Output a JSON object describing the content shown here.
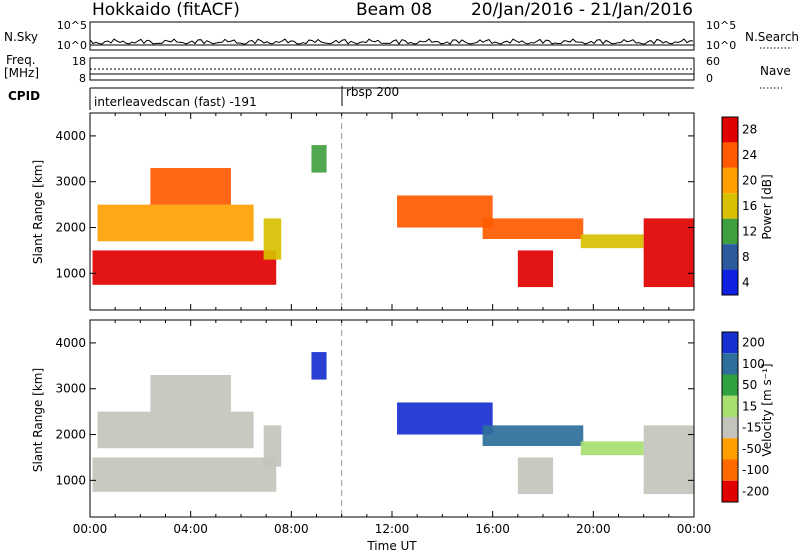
{
  "header": {
    "station": "Hokkaido (fitACF)",
    "beam": "Beam 08",
    "date_range": "20/Jan/2016 - 21/Jan/2016"
  },
  "status_panel": {
    "nsky_label": "N.Sky",
    "nsky_ticks": [
      "10^5",
      "10^0"
    ],
    "nsearch_label": "N.Search",
    "nsearch_ticks": [
      "10^5",
      "10^0"
    ],
    "freq_label": "Freq.",
    "freq_unit": "[MHz]",
    "freq_ticks": [
      "18",
      "8"
    ],
    "nave_label": "Nave",
    "nave_ticks": [
      "60",
      "0"
    ],
    "cpid_label": "CPID",
    "cpid_modes": [
      {
        "name": "interleavedscan (fast) -191",
        "start_hour": 0
      },
      {
        "name": "rbsp 200",
        "start_hour": 10
      }
    ]
  },
  "chart_data": [
    {
      "type": "heatmap",
      "parameter": "power",
      "ylabel": "Slant Range [km]",
      "xlim": [
        0,
        24
      ],
      "ylim": [
        200,
        4500
      ],
      "yticks": [
        1000,
        2000,
        3000,
        4000
      ],
      "colorbar": {
        "label": "Power [dB]",
        "ticks": [
          "28",
          "24",
          "20",
          "16",
          "12",
          "8",
          "4"
        ],
        "colors": [
          "#e00000",
          "#ff5a00",
          "#ffa000",
          "#d8c000",
          "#40a040",
          "#2c5a9c",
          "#1020e0"
        ]
      },
      "regions": [
        {
          "t0": 0.1,
          "t1": 7.4,
          "r0": 750,
          "r1": 1500,
          "value": 28
        },
        {
          "t0": 0.3,
          "t1": 6.5,
          "r0": 1700,
          "r1": 2500,
          "value": 20
        },
        {
          "t0": 2.4,
          "t1": 5.6,
          "r0": 2500,
          "r1": 3300,
          "value": 22
        },
        {
          "t0": 6.9,
          "t1": 7.6,
          "r0": 1300,
          "r1": 2200,
          "value": 14
        },
        {
          "t0": 8.8,
          "t1": 9.4,
          "r0": 3200,
          "r1": 3800,
          "value": 10
        },
        {
          "t0": 12.2,
          "t1": 16.0,
          "r0": 2000,
          "r1": 2700,
          "value": 22
        },
        {
          "t0": 15.6,
          "t1": 19.6,
          "r0": 1750,
          "r1": 2200,
          "value": 24
        },
        {
          "t0": 17.0,
          "t1": 18.4,
          "r0": 700,
          "r1": 1500,
          "value": 28
        },
        {
          "t0": 19.5,
          "t1": 22.0,
          "r0": 1550,
          "r1": 1850,
          "value": 16
        },
        {
          "t0": 22.0,
          "t1": 24.0,
          "r0": 700,
          "r1": 2200,
          "value": 28
        }
      ]
    },
    {
      "type": "heatmap",
      "parameter": "velocity",
      "xlabel": "Time UT",
      "ylabel": "Slant Range [km]",
      "xlim": [
        0,
        24
      ],
      "ylim": [
        200,
        4500
      ],
      "xticks": [
        "00:00",
        "04:00",
        "08:00",
        "12:00",
        "16:00",
        "20:00",
        "00:00"
      ],
      "yticks": [
        1000,
        2000,
        3000,
        4000
      ],
      "colorbar": {
        "label": "Velocity [m s⁻¹]",
        "ticks": [
          "200",
          "100",
          "50",
          "15",
          "-15",
          "-50",
          "-100",
          "-200"
        ],
        "colors": [
          "#1830d0",
          "#2e6e9a",
          "#30a040",
          "#a8e070",
          "#c4c4bc",
          "#ffa000",
          "#ff6a00",
          "#e00000"
        ]
      },
      "regions": [
        {
          "t0": 0.1,
          "t1": 7.4,
          "r0": 750,
          "r1": 1500,
          "value": 0
        },
        {
          "t0": 0.3,
          "t1": 6.5,
          "r0": 1700,
          "r1": 2500,
          "value": 0
        },
        {
          "t0": 2.4,
          "t1": 5.6,
          "r0": 2500,
          "r1": 3300,
          "value": 0
        },
        {
          "t0": 6.9,
          "t1": 7.6,
          "r0": 1300,
          "r1": 2200,
          "value": -30
        },
        {
          "t0": 8.8,
          "t1": 9.4,
          "r0": 3200,
          "r1": 3800,
          "value": 150
        },
        {
          "t0": 12.2,
          "t1": 16.0,
          "r0": 2000,
          "r1": 2700,
          "value": 180
        },
        {
          "t0": 15.6,
          "t1": 19.6,
          "r0": 1750,
          "r1": 2200,
          "value": 90
        },
        {
          "t0": 17.0,
          "t1": 18.4,
          "r0": 700,
          "r1": 1500,
          "value": 0
        },
        {
          "t0": 19.5,
          "t1": 22.0,
          "r0": 1550,
          "r1": 1850,
          "value": 30
        },
        {
          "t0": 22.0,
          "t1": 24.0,
          "r0": 700,
          "r1": 2200,
          "value": 0
        }
      ]
    }
  ]
}
